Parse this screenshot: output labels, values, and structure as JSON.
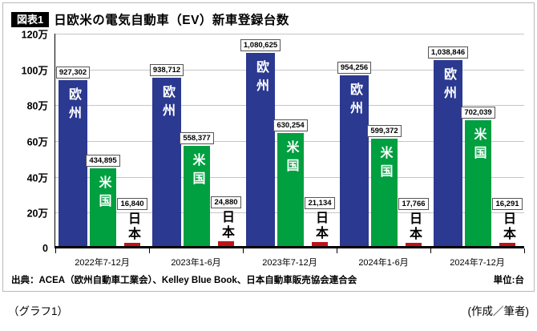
{
  "header": {
    "badge": "図表1",
    "title": "日欧米の電気自動車（EV）新車登録台数"
  },
  "chart_data": {
    "type": "bar",
    "title": "日欧米の電気自動車（EV）新車登録台数",
    "categories": [
      "2022年7-12月",
      "2023年1-6月",
      "2023年7-12月",
      "2024年1-6月",
      "2024年7-12月"
    ],
    "series": [
      {
        "name": "欧州",
        "color": "#2b3990",
        "values": [
          927302,
          938712,
          1080625,
          954256,
          1038846
        ],
        "labels": [
          "927,302",
          "938,712",
          "1,080,625",
          "954,256",
          "1,038,846"
        ]
      },
      {
        "name": "米国",
        "color": "#009f40",
        "values": [
          434895,
          558377,
          630254,
          599372,
          702039
        ],
        "labels": [
          "434,895",
          "558,377",
          "630,254",
          "599,372",
          "702,039"
        ]
      },
      {
        "name": "日本",
        "color": "#c1121c",
        "values": [
          16840,
          24880,
          21134,
          17766,
          16291
        ],
        "labels": [
          "16,840",
          "24,880",
          "21,134",
          "17,766",
          "16,291"
        ]
      }
    ],
    "y_ticks": [
      "120万",
      "100万",
      "80万",
      "60万",
      "40万",
      "20万",
      "0"
    ],
    "ylim": [
      0,
      1200000
    ],
    "xlabel": "",
    "ylabel": "",
    "grid": true,
    "legend_position": "labels inside bars"
  },
  "footer": {
    "source": "出典：ACEA（欧州自動車工業会）、Kelley Blue Book、日本自動車販売協会連合会",
    "unit": "単位:台",
    "caption_left": "（グラフ1）",
    "caption_right": "(作成／筆者)"
  }
}
